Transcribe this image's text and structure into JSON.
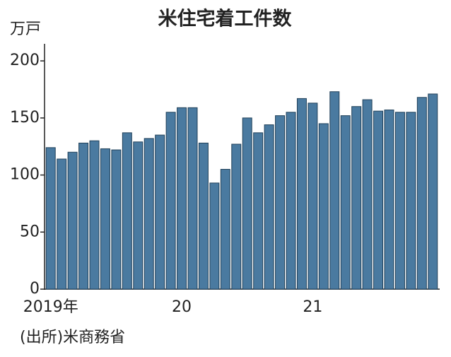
{
  "chart_data": {
    "type": "bar",
    "title": "米住宅着工件数",
    "y_label": "万戸",
    "source": "(出所)米商務省",
    "categories": [
      "2019年",
      null,
      null,
      null,
      null,
      null,
      null,
      null,
      null,
      null,
      null,
      null,
      "20",
      null,
      null,
      null,
      null,
      null,
      null,
      null,
      null,
      null,
      null,
      null,
      "21",
      null,
      null,
      null,
      null,
      null,
      null,
      null,
      null,
      null,
      null,
      null
    ],
    "values": [
      124,
      114,
      120,
      128,
      130,
      123,
      122,
      137,
      129,
      132,
      135,
      155,
      159,
      159,
      128,
      93,
      105,
      127,
      150,
      137,
      144,
      152,
      155,
      167,
      163,
      145,
      173,
      152,
      160,
      166,
      156,
      157,
      155,
      155,
      168,
      171
    ],
    "color": "#4a7aa0",
    "ylim": [
      0,
      210
    ],
    "yticks": [
      0,
      50,
      100,
      150,
      200
    ]
  }
}
